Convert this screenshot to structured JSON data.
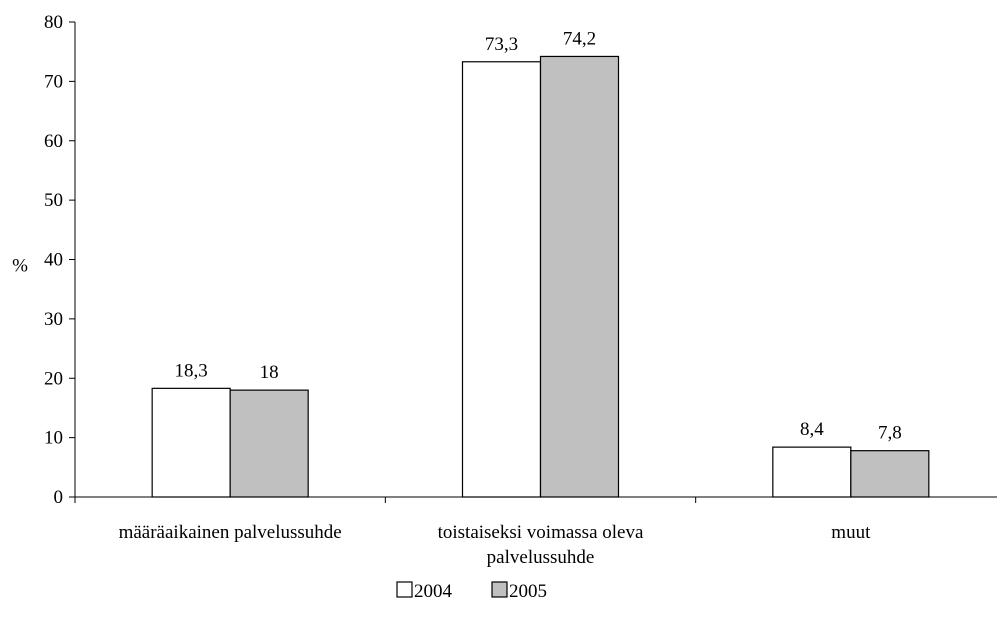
{
  "chart_data": {
    "type": "bar",
    "categories": [
      [
        "määräaikainen palvelussuhde"
      ],
      [
        "toistaiseksi voimassa oleva",
        "palvelussuhde"
      ],
      [
        "muut"
      ]
    ],
    "series": [
      {
        "name": "2004",
        "values": [
          18.3,
          73.3,
          8.4
        ],
        "labels": [
          "18,3",
          "73,3",
          "8,4"
        ],
        "color": "#ffffff"
      },
      {
        "name": "2005",
        "values": [
          18,
          74.2,
          7.8
        ],
        "labels": [
          "18",
          "74,2",
          "7,8"
        ],
        "color": "#c0c0c0"
      }
    ],
    "ylabel": "%",
    "ylim": [
      0,
      80
    ],
    "yticks": [
      0,
      10,
      20,
      30,
      40,
      50,
      60,
      70,
      80
    ],
    "grid": false,
    "legend": "bottom"
  }
}
